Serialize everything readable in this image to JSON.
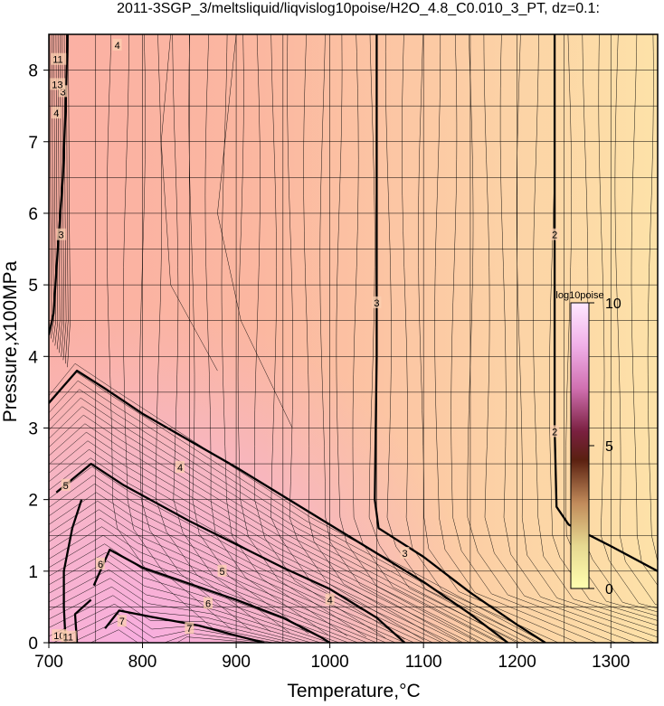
{
  "chart_data": {
    "type": "contour",
    "title": "2011-3SGP_3/meltsliquid/liqvislog10poise/H2O_4.8_C0.010_3_PT, dz=0.1:",
    "xlabel": "Temperature,°C",
    "ylabel": "Pressure,x100MPa",
    "xlim": [
      700,
      1350
    ],
    "ylim": [
      0,
      8.5
    ],
    "xticks": [
      "700",
      "800",
      "900",
      "1000",
      "1100",
      "1200",
      "1300"
    ],
    "yticks": [
      "0",
      "1",
      "2",
      "3",
      "4",
      "5",
      "6",
      "7",
      "8"
    ],
    "grid": true,
    "contour_interval": 0.1,
    "bold_contour_levels": [
      2,
      3,
      4,
      5,
      6,
      7
    ],
    "major_contours": [
      {
        "level": 3,
        "points": [
          [
            1050,
            8.5
          ],
          [
            1050,
            6.0
          ],
          [
            1050,
            4.0
          ],
          [
            1048,
            2.0
          ],
          [
            1052,
            1.6
          ],
          [
            1100,
            1.2
          ],
          [
            1150,
            0.7
          ],
          [
            1200,
            0.25
          ],
          [
            1230,
            0
          ]
        ]
      },
      {
        "level": 2,
        "points": [
          [
            1240,
            8.5
          ],
          [
            1240,
            6.0
          ],
          [
            1240,
            3.0
          ],
          [
            1242,
            1.9
          ],
          [
            1255,
            1.65
          ],
          [
            1300,
            1.35
          ],
          [
            1350,
            1.0
          ]
        ]
      },
      {
        "level": 4,
        "points": [
          [
            700,
            3.35
          ],
          [
            730,
            3.8
          ],
          [
            760,
            3.55
          ],
          [
            800,
            3.2
          ],
          [
            900,
            2.45
          ],
          [
            1000,
            1.65
          ],
          [
            1050,
            1.25
          ],
          [
            1100,
            0.85
          ],
          [
            1150,
            0.4
          ],
          [
            1180,
            0.1
          ],
          [
            1190,
            0
          ]
        ]
      },
      {
        "level": 5,
        "points": [
          [
            708,
            2.1
          ],
          [
            745,
            2.5
          ],
          [
            780,
            2.2
          ],
          [
            850,
            1.7
          ],
          [
            950,
            1.05
          ],
          [
            1000,
            0.75
          ],
          [
            1050,
            0.35
          ],
          [
            1080,
            0
          ]
        ]
      },
      {
        "level": 6,
        "points": [
          [
            748,
            0.8
          ],
          [
            765,
            1.3
          ],
          [
            800,
            1.05
          ],
          [
            900,
            0.6
          ],
          [
            950,
            0.35
          ],
          [
            990,
            0.08
          ],
          [
            1000,
            0
          ]
        ]
      },
      {
        "level": 7,
        "points": [
          [
            760,
            0.2
          ],
          [
            775,
            0.45
          ],
          [
            810,
            0.36
          ],
          [
            860,
            0.24
          ],
          [
            900,
            0.1
          ],
          [
            930,
            0
          ]
        ]
      },
      {
        "level": 3,
        "points": [
          [
            700,
            4.3
          ],
          [
            705,
            4.6
          ],
          [
            710,
            5.6
          ],
          [
            715,
            6.5
          ],
          [
            718,
            7.5
          ],
          [
            720,
            8.5
          ]
        ]
      },
      {
        "level": 6,
        "points": [
          [
            718,
            0
          ],
          [
            716,
            0.5
          ],
          [
            716,
            1.0
          ],
          [
            725,
            1.6
          ],
          [
            735,
            2.0
          ]
        ]
      },
      {
        "level": 7,
        "points": [
          [
            730,
            0
          ],
          [
            728,
            0.4
          ],
          [
            745,
            0.6
          ]
        ]
      }
    ],
    "contour_labels": [
      {
        "text": "2",
        "x": 1240,
        "y": 5.7
      },
      {
        "text": "2",
        "x": 1240,
        "y": 2.95
      },
      {
        "text": "3",
        "x": 1050,
        "y": 4.75
      },
      {
        "text": "3",
        "x": 1080,
        "y": 1.25
      },
      {
        "text": "3",
        "x": 713,
        "y": 5.7
      },
      {
        "text": "3",
        "x": 715,
        "y": 7.7
      },
      {
        "text": "4",
        "x": 840,
        "y": 2.45
      },
      {
        "text": "4",
        "x": 1000,
        "y": 0.6
      },
      {
        "text": "4",
        "x": 708,
        "y": 7.4
      },
      {
        "text": "4",
        "x": 773,
        "y": 8.35
      },
      {
        "text": "5",
        "x": 718,
        "y": 2.2
      },
      {
        "text": "5",
        "x": 885,
        "y": 1.0
      },
      {
        "text": "6",
        "x": 755,
        "y": 1.1
      },
      {
        "text": "6",
        "x": 870,
        "y": 0.55
      },
      {
        "text": "7",
        "x": 778,
        "y": 0.3
      },
      {
        "text": "7",
        "x": 850,
        "y": 0.2
      },
      {
        "text": "11",
        "x": 707,
        "y": 8.15
      },
      {
        "text": "13",
        "x": 706,
        "y": 7.8
      },
      {
        "text": "10",
        "x": 708,
        "y": 0.1
      },
      {
        "text": "11",
        "x": 718,
        "y": 0.08
      }
    ],
    "colorbar": {
      "title": "log10poise",
      "ticks": [
        "10",
        "5",
        "0"
      ],
      "range": [
        0,
        10
      ],
      "colors": [
        "#ffffb0",
        "#d2b472",
        "#8a4a2a",
        "#3a1010",
        "#b0406a",
        "#e888c8",
        "#f5c6ee",
        "#ffe6ff"
      ]
    },
    "colors": {
      "low_viscosity": "#fde2a8",
      "mid_viscosity": "#fbb4a4",
      "high_viscosity": "#f7b4d8",
      "contour_line": "#000000",
      "grid_line": "#000000"
    }
  }
}
